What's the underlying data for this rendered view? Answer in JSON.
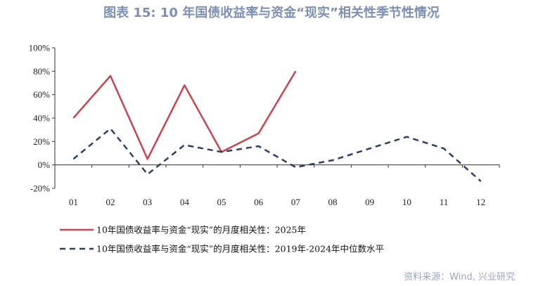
{
  "title": "图表 15: 10 年国债收益率与资金“现实”相关性季节性情况",
  "source": "资料来源：Wind, 兴业研究",
  "colors": {
    "series_2025": "#c84450",
    "series_median": "#2f3f5f"
  },
  "chart_data": {
    "type": "line",
    "categories": [
      "01",
      "02",
      "03",
      "04",
      "05",
      "06",
      "07",
      "08",
      "09",
      "10",
      "11",
      "12"
    ],
    "y_ticks": [
      "100%",
      "80%",
      "60%",
      "40%",
      "20%",
      "0%",
      "-20%"
    ],
    "ylim": [
      -20,
      100
    ],
    "grid": false,
    "legend_position": "bottom",
    "series": [
      {
        "name": "10年国债收益率与资金“现实”的月度相关性：2025年",
        "values": [
          40,
          76,
          5,
          68,
          11,
          27,
          80,
          null,
          null,
          null,
          null,
          null
        ],
        "style": "solid"
      },
      {
        "name": "10年国债收益率与资金“现实”的月度相关性：2019年-2024年中位数水平",
        "values": [
          5,
          31,
          -8,
          17,
          11,
          16,
          -2,
          4,
          14,
          24,
          14,
          -14
        ],
        "style": "dashed"
      }
    ]
  }
}
